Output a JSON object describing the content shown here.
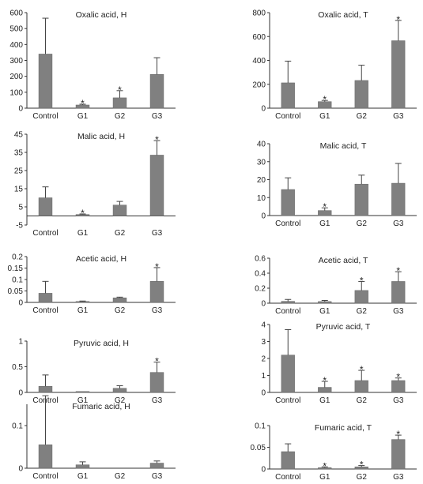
{
  "colors": {
    "bar": "#808080",
    "bar_edge": "#666666",
    "axis": "#333333",
    "error": "#444444"
  },
  "categories": [
    "Control",
    "G1",
    "G2",
    "G3"
  ],
  "chart_data": [
    {
      "type": "bar",
      "title": "Oxalic acid, H",
      "categories": [
        "Control",
        "G1",
        "G2",
        "G3"
      ],
      "values": [
        340,
        20,
        65,
        212
      ],
      "errors": [
        225,
        5,
        45,
        105
      ],
      "ylim": [
        0,
        600
      ],
      "yticks": [
        "0",
        "100",
        "200",
        "300",
        "400",
        "500",
        "600"
      ],
      "significant": [
        false,
        true,
        true,
        false
      ]
    },
    {
      "type": "bar",
      "title": "Oxalic acid, T",
      "categories": [
        "Control",
        "G1",
        "G2",
        "G3"
      ],
      "values": [
        212,
        55,
        232,
        565
      ],
      "errors": [
        182,
        10,
        128,
        170
      ],
      "ylim": [
        0,
        800
      ],
      "yticks": [
        "0",
        "200",
        "400",
        "600",
        "800"
      ],
      "significant": [
        false,
        true,
        false,
        true
      ]
    },
    {
      "type": "bar",
      "title": "Malic acid, H",
      "categories": [
        "Control",
        "G1",
        "G2",
        "G3"
      ],
      "values": [
        10,
        0.8,
        6,
        33.5
      ],
      "errors": [
        6,
        0.3,
        2,
        8
      ],
      "ylim": [
        -5,
        45
      ],
      "yticks": [
        "-5",
        "5",
        "15",
        "25",
        "35",
        "45"
      ],
      "significant": [
        false,
        true,
        false,
        true
      ]
    },
    {
      "type": "bar",
      "title": "Malic acid, T",
      "categories": [
        "Control",
        "G1",
        "G2",
        "G3"
      ],
      "values": [
        14.5,
        2.8,
        17.5,
        18
      ],
      "errors": [
        6.5,
        1.5,
        5,
        11
      ],
      "ylim": [
        0,
        40
      ],
      "yticks": [
        "0",
        "10",
        "20",
        "30",
        "40"
      ],
      "significant": [
        false,
        true,
        false,
        false
      ]
    },
    {
      "type": "bar",
      "title": "Acetic acid, H",
      "categories": [
        "Control",
        "G1",
        "G2",
        "G3"
      ],
      "values": [
        0.04,
        0.004,
        0.02,
        0.092
      ],
      "errors": [
        0.052,
        0.002,
        0.003,
        0.06
      ],
      "ylim": [
        0,
        0.2
      ],
      "yticks": [
        "0",
        "0.05",
        "0.1",
        "0.15",
        "0.2"
      ],
      "significant": [
        false,
        false,
        false,
        true
      ]
    },
    {
      "type": "bar",
      "title": "Acetic acid, T",
      "categories": [
        "Control",
        "G1",
        "G2",
        "G3"
      ],
      "values": [
        0.025,
        0.022,
        0.17,
        0.29
      ],
      "errors": [
        0.025,
        0.015,
        0.12,
        0.13
      ],
      "ylim": [
        0,
        0.6
      ],
      "yticks": [
        "0",
        "0.2",
        "0.4",
        "0.6"
      ],
      "significant": [
        false,
        false,
        true,
        true
      ]
    },
    {
      "type": "bar",
      "title": "Pyruvic acid, H",
      "categories": [
        "Control",
        "G1",
        "G2",
        "G3"
      ],
      "values": [
        0.12,
        0.01,
        0.08,
        0.39
      ],
      "errors": [
        0.22,
        0.0,
        0.05,
        0.2
      ],
      "ylim": [
        0,
        1
      ],
      "yticks": [
        "0",
        "0.5",
        "1"
      ],
      "significant": [
        false,
        false,
        false,
        true
      ]
    },
    {
      "type": "bar",
      "title": "Pyruvic acid, T",
      "categories": [
        "Control",
        "G1",
        "G2",
        "G3"
      ],
      "values": [
        2.2,
        0.3,
        0.7,
        0.7
      ],
      "errors": [
        1.5,
        0.35,
        0.6,
        0.15
      ],
      "ylim": [
        0,
        4
      ],
      "yticks": [
        "0",
        "1",
        "2",
        "3",
        "4"
      ],
      "significant": [
        false,
        true,
        true,
        true
      ]
    },
    {
      "type": "bar",
      "title": "Fumaric acid, H",
      "categories": [
        "Control",
        "G1",
        "G2",
        "G3"
      ],
      "values": [
        0.055,
        0.008,
        0.0,
        0.012
      ],
      "errors": [
        0.115,
        0.007,
        0.0,
        0.005
      ],
      "ylim": [
        0,
        0.15
      ],
      "yticks": [
        "0",
        "0.1"
      ],
      "significant": [
        false,
        false,
        false,
        false
      ]
    },
    {
      "type": "bar",
      "title": "Fumaric acid, T",
      "categories": [
        "Control",
        "G1",
        "G2",
        "G3"
      ],
      "values": [
        0.04,
        0.003,
        0.005,
        0.068
      ],
      "errors": [
        0.018,
        0.002,
        0.003,
        0.01
      ],
      "ylim": [
        0,
        0.1
      ],
      "yticks": [
        "0",
        "0.05",
        "0.1"
      ],
      "significant": [
        false,
        true,
        true,
        true
      ]
    }
  ]
}
